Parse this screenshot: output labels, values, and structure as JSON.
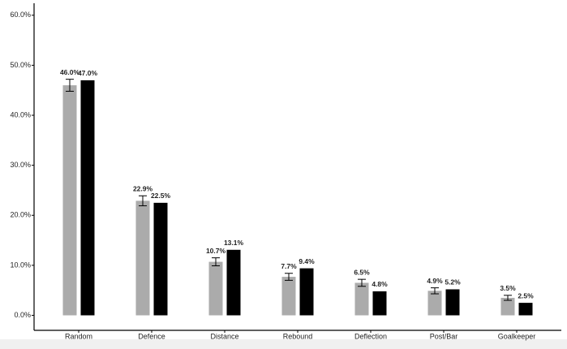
{
  "chart_data": {
    "type": "bar",
    "categories": [
      "Random",
      "Defence",
      "Distance",
      "Rebound",
      "Deflection",
      "Post/Bar",
      "Goalkeeper"
    ],
    "series": [
      {
        "color": "#ababab",
        "values": [
          46.0,
          22.9,
          10.7,
          7.7,
          6.5,
          4.9,
          3.5
        ],
        "errors": [
          1.2,
          1.0,
          0.8,
          0.7,
          0.7,
          0.6,
          0.5
        ],
        "value_labels": [
          "46.0%",
          "22.9%",
          "10.7%",
          "7.7%",
          "6.5%",
          "4.9%",
          "3.5%"
        ]
      },
      {
        "color": "#000000",
        "values": [
          47.0,
          22.5,
          13.1,
          9.4,
          4.8,
          5.2,
          2.5
        ],
        "value_labels": [
          "47.0%",
          "22.5%",
          "13.1%",
          "9.4%",
          "4.8%",
          "5.2%",
          "2.5%"
        ]
      }
    ],
    "ylim": [
      -3,
      62.4
    ],
    "yticks": [
      {
        "value": 0,
        "label": "0.0%"
      },
      {
        "value": 10,
        "label": "10.0%"
      },
      {
        "value": 20,
        "label": "20.0%"
      },
      {
        "value": 30,
        "label": "30.0%"
      },
      {
        "value": 40,
        "label": "40.0%"
      },
      {
        "value": 50,
        "label": "50.0%"
      },
      {
        "value": 60,
        "label": "60.0%"
      }
    ],
    "grid": false
  }
}
